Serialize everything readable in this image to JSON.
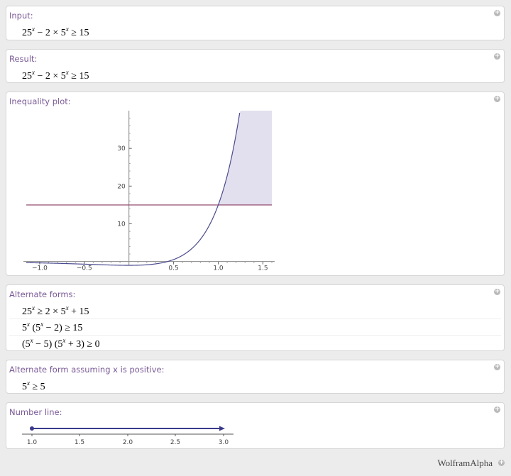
{
  "pods": {
    "input": {
      "title": "Input:",
      "expr": {
        "base1": "25",
        "exp": "x",
        "mid": " − 2 × 5",
        "exp2": "x",
        "tail": " ≥ 15"
      }
    },
    "result": {
      "title": "Result:",
      "expr": {
        "base1": "25",
        "exp": "x",
        "mid": " − 2 × 5",
        "exp2": "x",
        "tail": " ≥ 15"
      }
    },
    "plot": {
      "title": "Inequality plot:"
    },
    "alternate_forms": {
      "title": "Alternate forms:",
      "rows": [
        {
          "a": "25",
          "ae": "x",
          "b": " ≥ 2 × 5",
          "be": "x",
          "c": " + 15"
        },
        {
          "a": "5",
          "ae": "x",
          "b": " (5",
          "be": "x",
          "c": " − 2) ≥ 15"
        },
        {
          "a": "(5",
          "ae": "x",
          "b": " − 5) (5",
          "be": "x",
          "c": " + 3) ≥ 0"
        }
      ]
    },
    "alt_positive": {
      "title": "Alternate form assuming x is positive:",
      "expr": {
        "a": "5",
        "ae": "x",
        "b": " ≥ 5"
      }
    },
    "number_line": {
      "title": "Number line:",
      "ticks": [
        "1.0",
        "1.5",
        "2.0",
        "2.5",
        "3.0"
      ]
    }
  },
  "footer": {
    "brand": "WolframAlpha"
  },
  "chart_data": {
    "type": "line",
    "title": "",
    "xlabel": "",
    "ylabel": "",
    "xlim": [
      -1.15,
      1.6
    ],
    "ylim": [
      -1,
      40
    ],
    "x_ticks": [
      -1.0,
      -0.5,
      0.5,
      1.0,
      1.5
    ],
    "x_tick_labels": [
      "−1.0",
      "−0.5",
      "0.5",
      "1.0",
      "1.5"
    ],
    "y_ticks": [
      10,
      20,
      30
    ],
    "y_tick_labels": [
      "10",
      "20",
      "30"
    ],
    "series": [
      {
        "function": "25^x - 2*5^x",
        "color": "#4b4b8f"
      },
      {
        "constant": 15,
        "color": "#8b3a62"
      }
    ],
    "shaded_region": {
      "x_from": 1.0,
      "x_to": 1.6,
      "color": "#e2e0ef"
    }
  },
  "colors": {
    "title": "#7a5a96",
    "curve": "#4b4b8f",
    "line": "#8b3a62",
    "shade": "#e2e0ef",
    "numberline": "#3a3a8c"
  }
}
